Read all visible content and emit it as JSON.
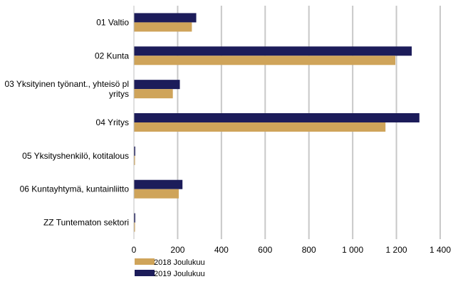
{
  "chart_data": {
    "type": "bar",
    "orientation": "horizontal",
    "categories": [
      [
        "01 Valtio"
      ],
      [
        "02 Kunta"
      ],
      [
        "03 Yksityinen työnant., yhteisö pl",
        "yritys"
      ],
      [
        "04 Yritys"
      ],
      [
        "05 Yksityshenkilö, kotitalous"
      ],
      [
        "06 Kuntayhtymä, kuntainliitto"
      ],
      [
        "ZZ Tuntematon sektori"
      ]
    ],
    "series": [
      {
        "name": "2019 Joulukuu",
        "color": "#1c1c5a",
        "values": [
          285,
          1270,
          210,
          1305,
          6,
          222,
          6
        ]
      },
      {
        "name": "2018 Joulukuu",
        "color": "#cfa45a",
        "values": [
          265,
          1195,
          178,
          1150,
          5,
          205,
          5
        ]
      }
    ],
    "x_ticks": [
      "0",
      "200",
      "400",
      "600",
      "800",
      "1 000",
      "1 200",
      "1 400"
    ],
    "xlim": [
      0,
      1400
    ],
    "grid": "vertical",
    "legend": {
      "placement": "bottom-left",
      "order": [
        "2018 Joulukuu",
        "2019 Joulukuu"
      ]
    }
  }
}
